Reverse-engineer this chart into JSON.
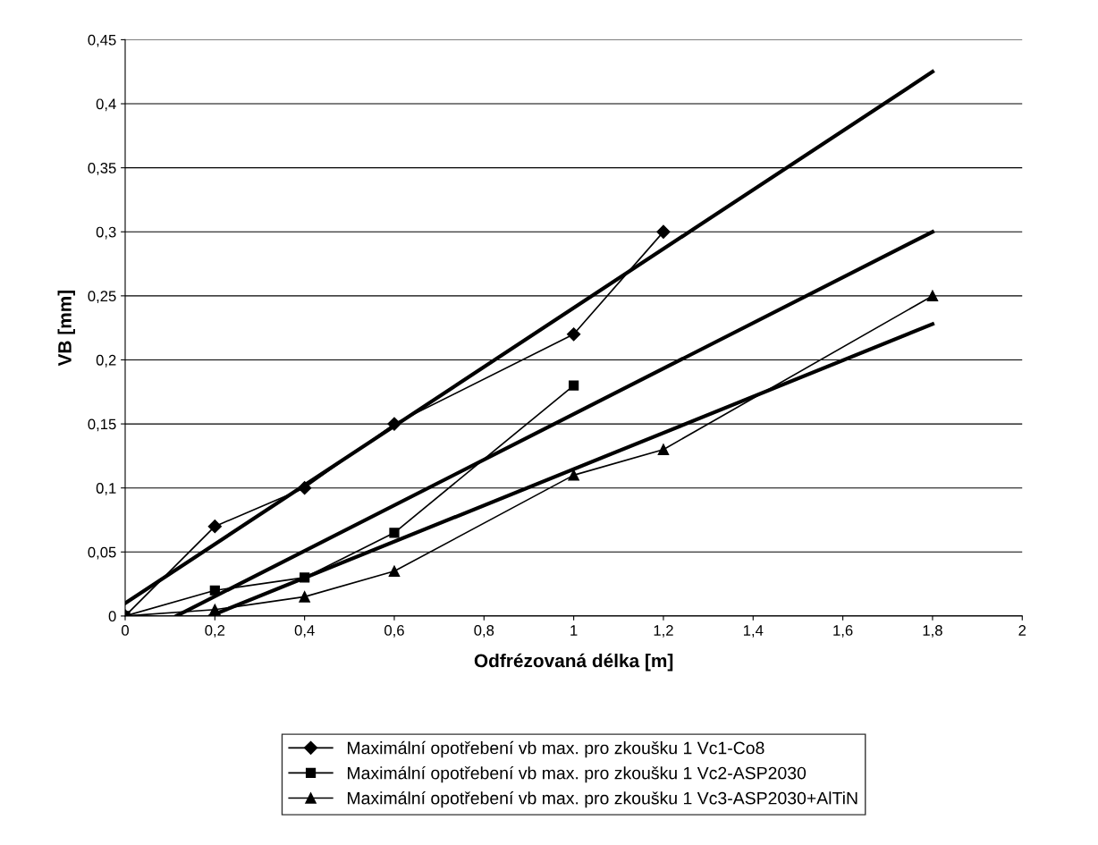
{
  "chart_data": {
    "type": "line",
    "xlabel": "Odfrézovaná délka [m]",
    "ylabel": "VB [mm]",
    "xlim": [
      0,
      2
    ],
    "ylim": [
      0,
      0.45
    ],
    "xticks": [
      0,
      {
        "value": 0.2,
        "label": "0,2"
      },
      {
        "value": 0.4,
        "label": "0,4"
      },
      {
        "value": 0.6,
        "label": "0,6"
      },
      {
        "value": 0.8,
        "label": "0,8"
      },
      1,
      {
        "value": 1.2,
        "label": "1,2"
      },
      {
        "value": 1.4,
        "label": "1,4"
      },
      {
        "value": 1.6,
        "label": "1,6"
      },
      {
        "value": 1.8,
        "label": "1,8"
      },
      2
    ],
    "yticks": [
      0,
      {
        "value": 0.05,
        "label": "0,05"
      },
      {
        "value": 0.1,
        "label": "0,1"
      },
      {
        "value": 0.15,
        "label": "0,15"
      },
      {
        "value": 0.2,
        "label": "0,2"
      },
      {
        "value": 0.25,
        "label": "0,25"
      },
      {
        "value": 0.3,
        "label": "0,3"
      },
      {
        "value": 0.35,
        "label": "0,35"
      },
      {
        "value": 0.4,
        "label": "0,4"
      },
      {
        "value": 0.45,
        "label": "0,45"
      }
    ],
    "grid": "y",
    "legend": "bottom",
    "series": [
      {
        "name": "Maximální opotřebení vb max. pro zkoušku 1 Vc1-Co8",
        "color": "#000000",
        "marker": "diamond",
        "x": [
          0,
          0.2,
          0.4,
          0.6,
          1,
          1.2
        ],
        "values": [
          0,
          0.07,
          0.1,
          0.15,
          0.22,
          0.3
        ]
      },
      {
        "name": "Maximální opotřebení vb max. pro zkoušku 1 Vc2-ASP2030",
        "color": "#000000",
        "marker": "square",
        "x": [
          0,
          0.2,
          0.4,
          0.6,
          1
        ],
        "values": [
          0,
          0.02,
          0.03,
          0.065,
          0.18
        ]
      },
      {
        "name": "Maximální opotřebení vb max. pro zkoušku 1 Vc3-ASP2030+AlTiN",
        "color": "#000000",
        "marker": "triangle",
        "x": [
          0,
          0.2,
          0.4,
          0.6,
          1,
          1.2,
          1.8
        ],
        "values": [
          0,
          0.005,
          0.015,
          0.035,
          0.11,
          0.13,
          0.25
        ]
      },
      {
        "color": "#000000",
        "marker": "none",
        "x": [
          0,
          1.8
        ],
        "values": [
          0.01,
          0.425
        ]
      },
      {
        "color": "#000000",
        "marker": "none",
        "x": [
          0.114,
          1.8
        ],
        "values": [
          0,
          0.3
        ]
      },
      {
        "color": "#000000",
        "marker": "none",
        "x": [
          0.19,
          1.8
        ],
        "values": [
          0,
          0.228
        ]
      }
    ]
  }
}
